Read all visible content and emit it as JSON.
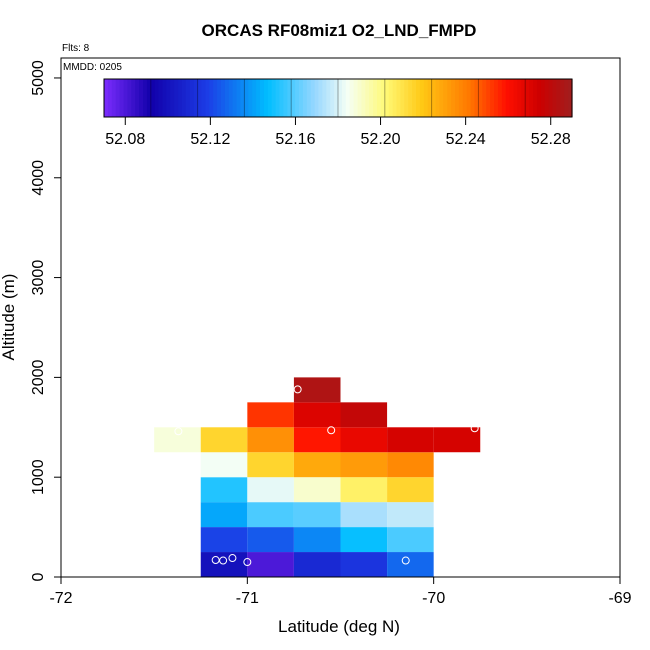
{
  "chart_data": {
    "type": "heatmap",
    "title": "ORCAS RF08miz1 O2_LND_FMPD",
    "flts_text": "Flts: 8",
    "mmdd_text": "MMDD: 0205",
    "xlabel": "Latitude (deg N)",
    "ylabel": "Altitude (m)",
    "xlim": [
      -72,
      -69
    ],
    "ylim": [
      0,
      5200
    ],
    "x_ticks": [
      -72,
      -71,
      -70,
      -69
    ],
    "x_tick_labels": [
      "-72",
      "-71",
      "-70",
      "-69"
    ],
    "y_ticks": [
      0,
      1000,
      2000,
      3000,
      4000,
      5000
    ],
    "y_tick_labels": [
      "0",
      "1000",
      "2000",
      "3000",
      "4000",
      "5000"
    ],
    "colorbar": {
      "min": 52.07,
      "max": 52.29,
      "tick_values": [
        52.08,
        52.12,
        52.16,
        52.2,
        52.24,
        52.28
      ],
      "tick_labels": [
        "52.08",
        "52.12",
        "52.16",
        "52.20",
        "52.24",
        "52.28"
      ]
    },
    "cells": [
      {
        "lat": -71.125,
        "alt": 125,
        "value": 52.1
      },
      {
        "lat": -70.875,
        "alt": 125,
        "value": 52.08
      },
      {
        "lat": -70.625,
        "alt": 125,
        "value": 52.11
      },
      {
        "lat": -70.375,
        "alt": 125,
        "value": 52.115
      },
      {
        "lat": -70.125,
        "alt": 125,
        "value": 52.128
      },
      {
        "lat": -71.125,
        "alt": 375,
        "value": 52.12
      },
      {
        "lat": -70.875,
        "alt": 375,
        "value": 52.125
      },
      {
        "lat": -70.625,
        "alt": 375,
        "value": 52.135
      },
      {
        "lat": -70.375,
        "alt": 375,
        "value": 52.148
      },
      {
        "lat": -70.125,
        "alt": 375,
        "value": 52.158
      },
      {
        "lat": -71.125,
        "alt": 625,
        "value": 52.142
      },
      {
        "lat": -70.875,
        "alt": 625,
        "value": 52.158
      },
      {
        "lat": -70.625,
        "alt": 625,
        "value": 52.16
      },
      {
        "lat": -70.375,
        "alt": 625,
        "value": 52.172
      },
      {
        "lat": -70.125,
        "alt": 625,
        "value": 52.176
      },
      {
        "lat": -71.125,
        "alt": 875,
        "value": 52.152
      },
      {
        "lat": -70.875,
        "alt": 875,
        "value": 52.182
      },
      {
        "lat": -70.625,
        "alt": 875,
        "value": 52.19
      },
      {
        "lat": -70.375,
        "alt": 875,
        "value": 52.205
      },
      {
        "lat": -70.125,
        "alt": 875,
        "value": 52.215
      },
      {
        "lat": -71.125,
        "alt": 1125,
        "value": 52.184
      },
      {
        "lat": -70.875,
        "alt": 1125,
        "value": 52.215
      },
      {
        "lat": -70.625,
        "alt": 1125,
        "value": 52.228
      },
      {
        "lat": -70.375,
        "alt": 1125,
        "value": 52.232
      },
      {
        "lat": -70.125,
        "alt": 1125,
        "value": 52.237
      },
      {
        "lat": -71.375,
        "alt": 1375,
        "value": 52.188
      },
      {
        "lat": -71.125,
        "alt": 1375,
        "value": 52.215
      },
      {
        "lat": -70.875,
        "alt": 1375,
        "value": 52.235
      },
      {
        "lat": -70.625,
        "alt": 1375,
        "value": 52.258
      },
      {
        "lat": -70.375,
        "alt": 1375,
        "value": 52.266
      },
      {
        "lat": -70.125,
        "alt": 1375,
        "value": 52.272
      },
      {
        "lat": -69.875,
        "alt": 1375,
        "value": 52.272
      },
      {
        "lat": -70.875,
        "alt": 1625,
        "value": 52.253
      },
      {
        "lat": -70.625,
        "alt": 1625,
        "value": 52.27
      },
      {
        "lat": -70.375,
        "alt": 1625,
        "value": 52.278
      },
      {
        "lat": -70.625,
        "alt": 1875,
        "value": 52.285
      }
    ],
    "points": [
      {
        "lat": -71.17,
        "alt": 170
      },
      {
        "lat": -71.13,
        "alt": 165
      },
      {
        "lat": -71.08,
        "alt": 190
      },
      {
        "lat": -71.0,
        "alt": 150
      },
      {
        "lat": -70.15,
        "alt": 165
      },
      {
        "lat": -71.37,
        "alt": 1460
      },
      {
        "lat": -70.55,
        "alt": 1470
      },
      {
        "lat": -69.78,
        "alt": 1490
      },
      {
        "lat": -70.73,
        "alt": 1880
      }
    ]
  }
}
